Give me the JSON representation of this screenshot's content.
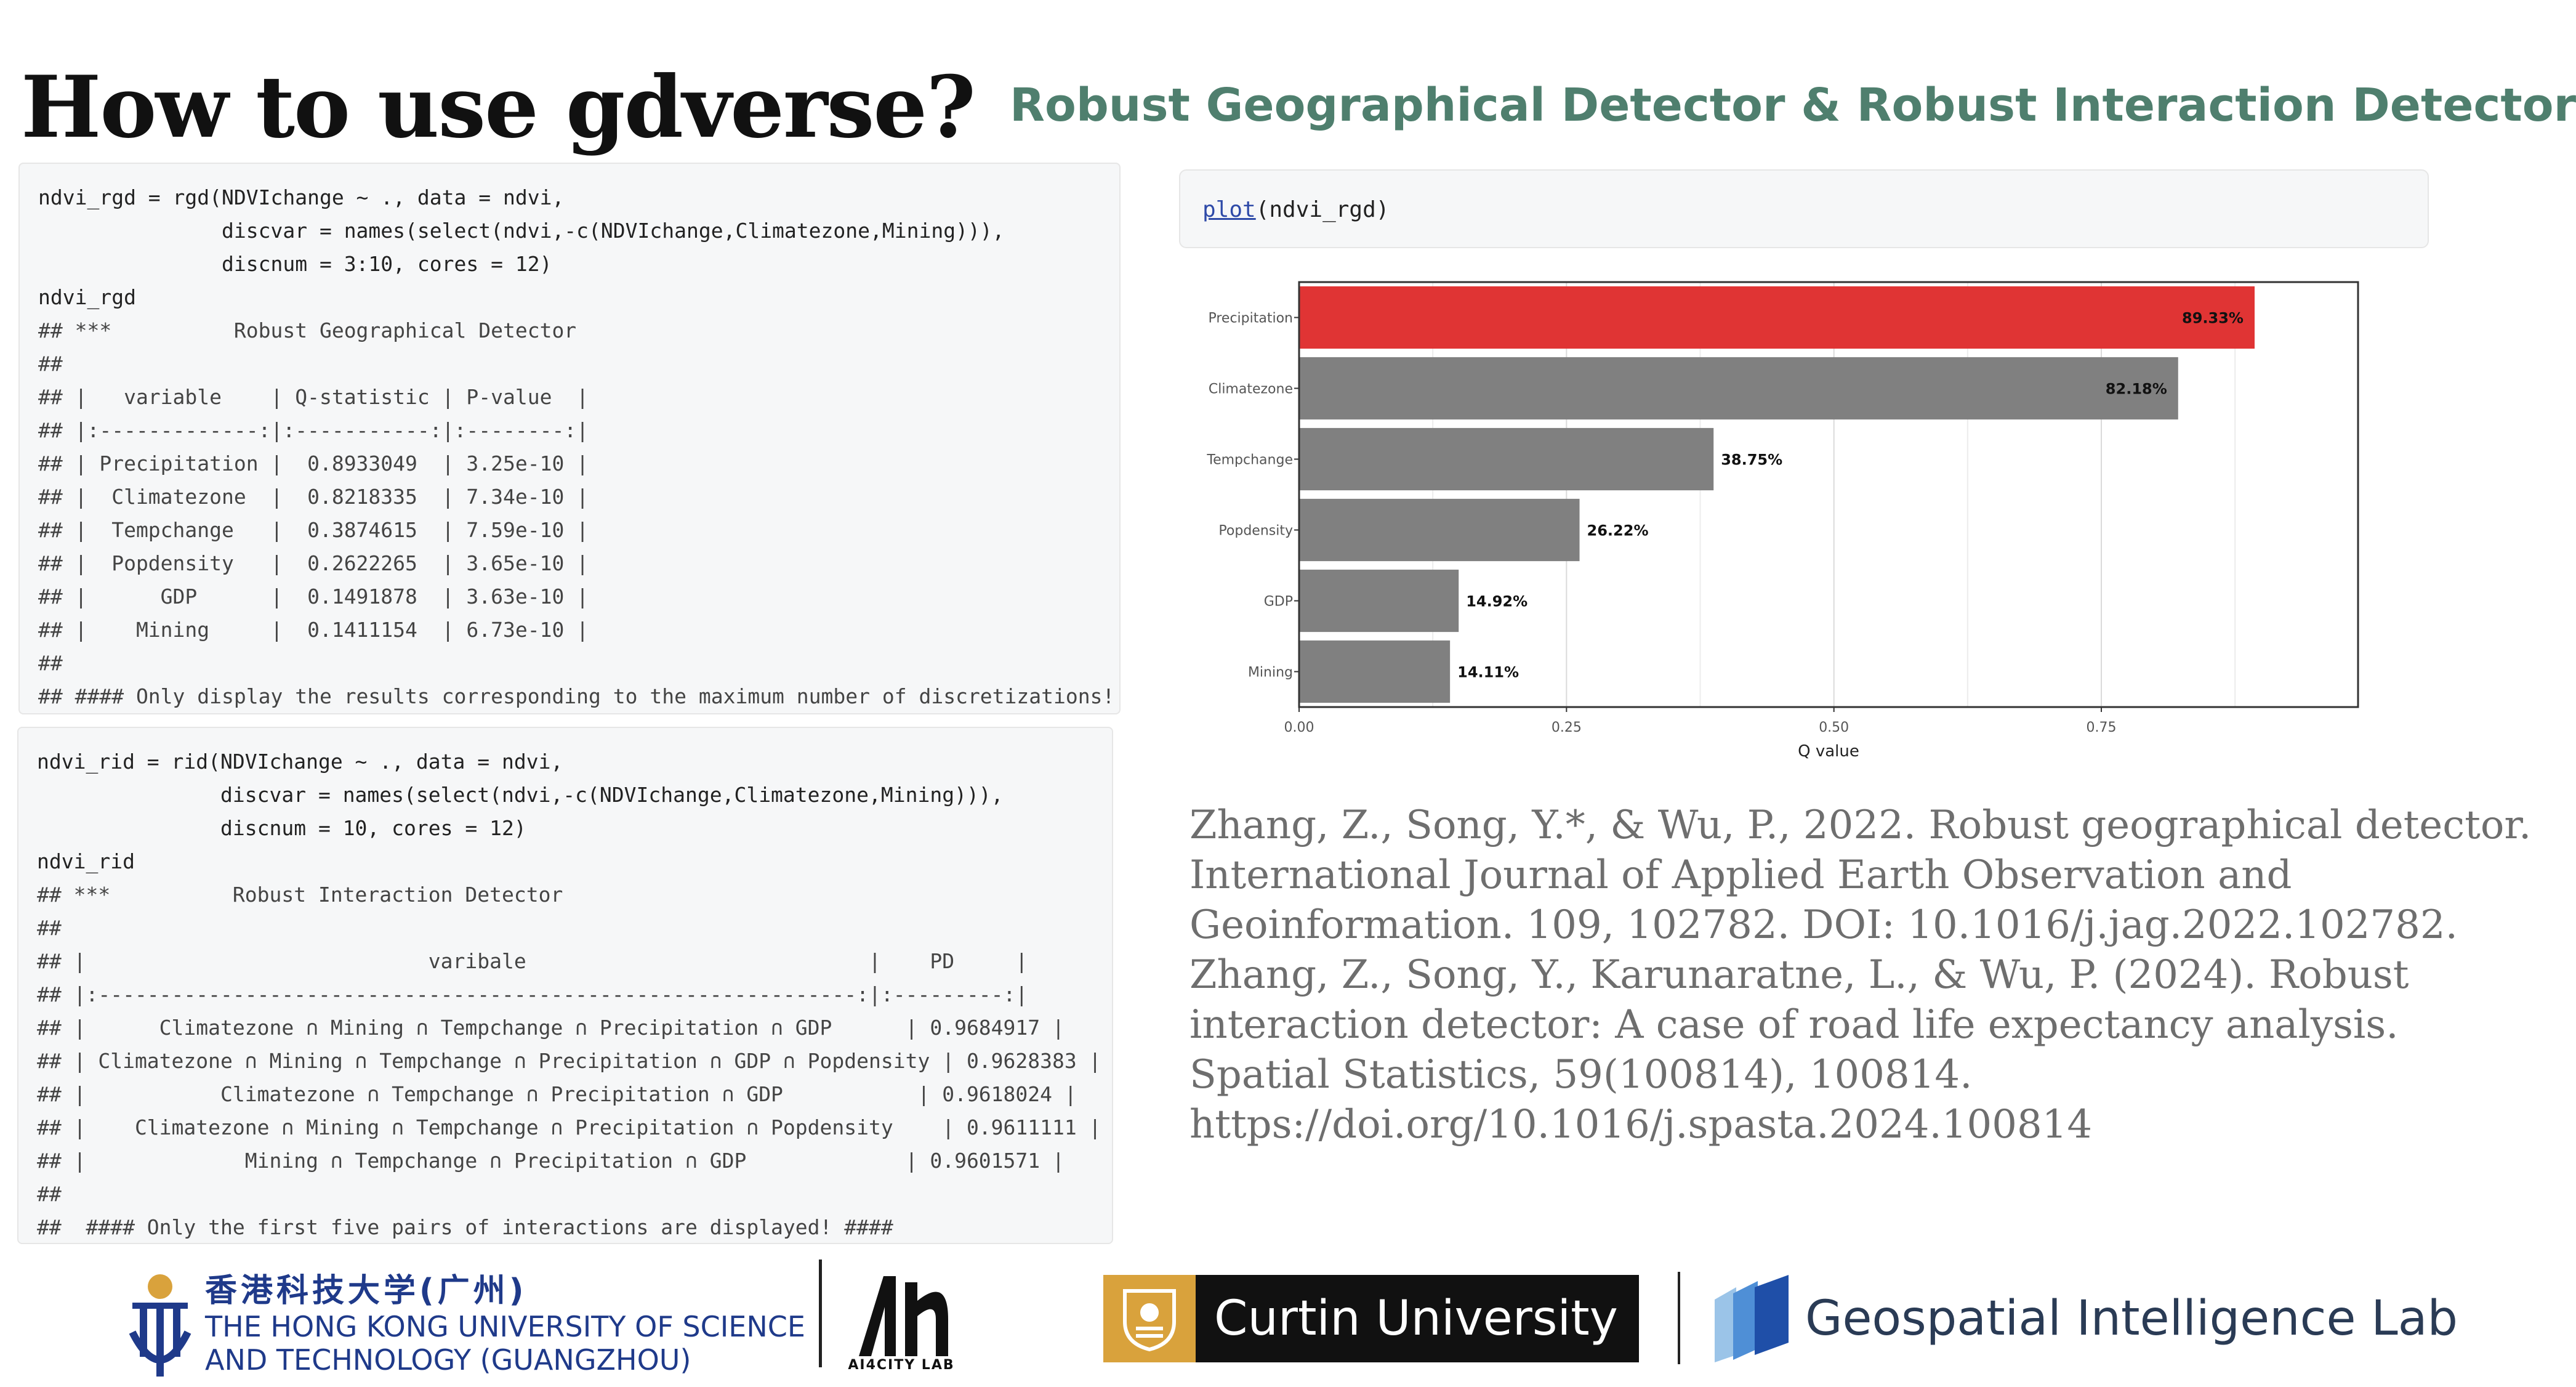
{
  "slide": {
    "title": "How to use gdverse?",
    "subtitle": "Robust Geographical Detector & Robust Interaction Detector"
  },
  "rgd_code": {
    "lines": [
      "ndvi_rgd = rgd(NDVIchange ~ ., data = ndvi,",
      "               discvar = names(select(ndvi,-c(NDVIchange,Climatezone,Mining))),",
      "               discnum = 3:10, cores = 12)",
      "ndvi_rgd",
      "## ***          Robust Geographical Detector",
      "##",
      "## |   variable    | Q-statistic | P-value  |",
      "## |:-------------:|:-----------:|:--------:|",
      "## | Precipitation |  0.8933049  | 3.25e-10 |",
      "## |  Climatezone  |  0.8218335  | 7.34e-10 |",
      "## |  Tempchange   |  0.3874615  | 7.59e-10 |",
      "## |  Popdensity   |  0.2622265  | 3.65e-10 |",
      "## |      GDP      |  0.1491878  | 3.63e-10 |",
      "## |    Mining     |  0.1411154  | 6.73e-10 |",
      "##",
      "## #### Only display the results corresponding to the maximum number of discretizations!"
    ]
  },
  "rid_code": {
    "lines": [
      "ndvi_rid = rid(NDVIchange ~ ., data = ndvi,",
      "               discvar = names(select(ndvi,-c(NDVIchange,Climatezone,Mining))),",
      "               discnum = 10, cores = 12)",
      "ndvi_rid",
      "## ***          Robust Interaction Detector",
      "##",
      "## |                            varibale                            |    PD     |",
      "## |:--------------------------------------------------------------:|:---------:|",
      "## |      Climatezone ∩ Mining ∩ Tempchange ∩ Precipitation ∩ GDP      | 0.9684917 |",
      "## | Climatezone ∩ Mining ∩ Tempchange ∩ Precipitation ∩ GDP ∩ Popdensity | 0.9628383 |",
      "## |           Climatezone ∩ Tempchange ∩ Precipitation ∩ GDP           | 0.9618024 |",
      "## |    Climatezone ∩ Mining ∩ Tempchange ∩ Precipitation ∩ Popdensity    | 0.9611111 |",
      "## |             Mining ∩ Tempchange ∩ Precipitation ∩ GDP             | 0.9601571 |",
      "##",
      "##  #### Only the first five pairs of interactions are displayed! ####"
    ]
  },
  "plot_cmd": {
    "fn": "plot",
    "args": "(ndvi_rgd)"
  },
  "chart_data": {
    "type": "bar",
    "orientation": "horizontal",
    "categories": [
      "Precipitation",
      "Climatezone",
      "Tempchange",
      "Popdensity",
      "GDP",
      "Mining"
    ],
    "values": [
      0.8933,
      0.8218,
      0.3875,
      0.2622,
      0.1492,
      0.1411
    ],
    "labels": [
      "89.33%",
      "82.18%",
      "38.75%",
      "26.22%",
      "14.92%",
      "14.11%"
    ],
    "xlabel": "Q value",
    "xticks": [
      "0.00",
      "0.25",
      "0.50",
      "0.75"
    ],
    "xlim": [
      0,
      0.99
    ],
    "grid": true,
    "highlight_color": "#e03434",
    "bar_color": "#808080"
  },
  "references": [
    "Zhang, Z., Song, Y.*, & Wu, P., 2022. Robust geographical detector.",
    "International Journal of Applied Earth Observation and",
    "Geoinformation. 109, 102782. DOI: 10.1016/j.jag.2022.102782.",
    "Zhang, Z., Song, Y., Karunaratne, L., & Wu, P. (2024). Robust",
    "interaction detector: A case of road life expectancy analysis.",
    "Spatial Statistics, 59(100814), 100814.",
    "https://doi.org/10.1016/j.spasta.2024.100814"
  ],
  "footer": {
    "hkust_cn": "香港科技大学(广州)",
    "hkust_en_1": "THE HONG KONG UNIVERSITY OF SCIENCE",
    "hkust_en_2": "AND TECHNOLOGY (GUANGZHOU)",
    "ai4city": "AI4CITY LAB",
    "curtin": "Curtin University",
    "gil": "Geospatial Intelligence Lab"
  }
}
